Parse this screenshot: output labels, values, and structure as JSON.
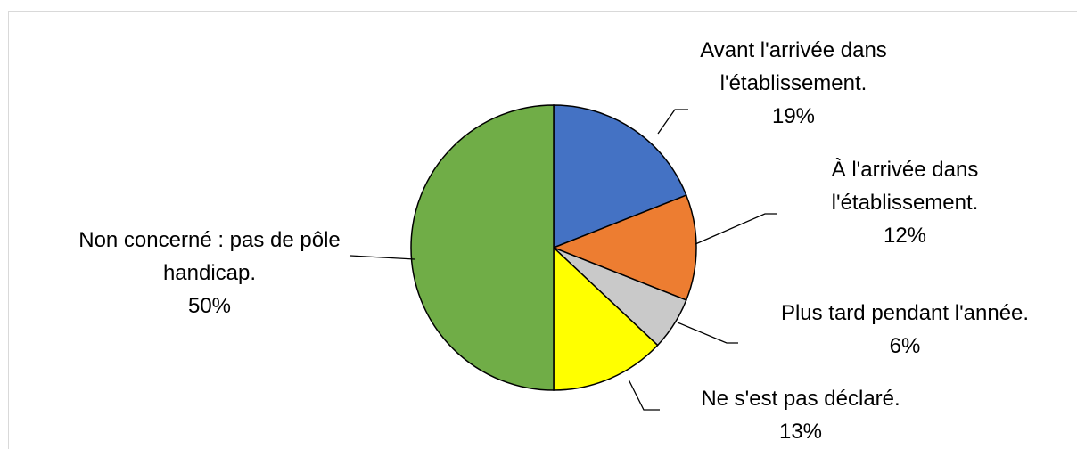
{
  "chart_data": {
    "type": "pie",
    "categories": [
      "Avant l'arrivée dans l'établissement.",
      "À l'arrivée dans l'établissement.",
      "Plus tard pendant l'année.",
      "Ne s'est pas déclaré.",
      "Non concerné : pas de pôle handicap."
    ],
    "values": [
      19,
      12,
      6,
      13,
      50
    ],
    "value_labels": [
      "19%",
      "12%",
      "6%",
      "13%",
      "50%"
    ],
    "colors": [
      "#4472c4",
      "#ed7d31",
      "#c9c9c9",
      "#ffff00",
      "#70ad47"
    ]
  }
}
